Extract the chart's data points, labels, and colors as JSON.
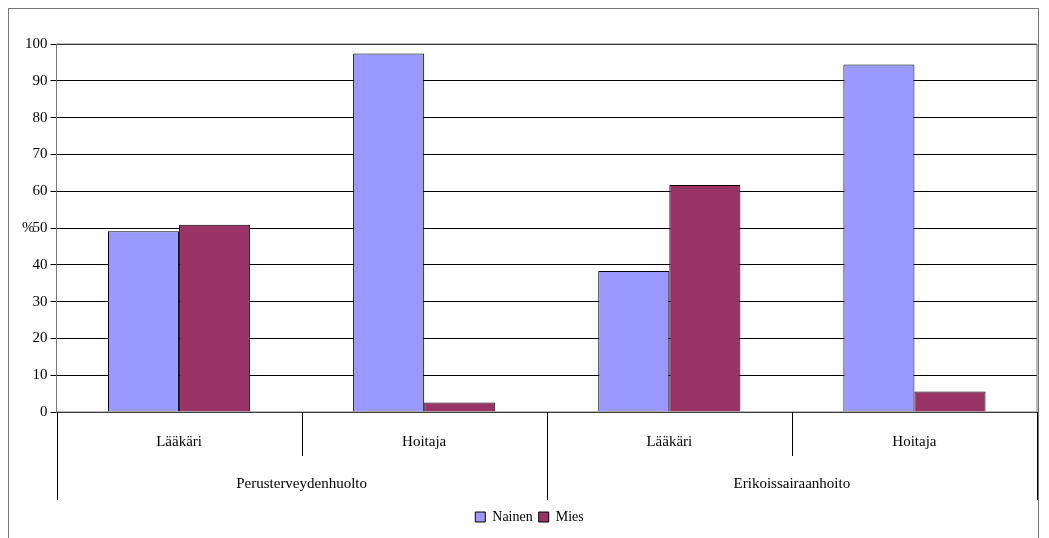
{
  "chart_data": {
    "type": "bar",
    "ylabel": "%",
    "categories": [
      "Lääkäri",
      "Hoitaja",
      "Lääkäri",
      "Hoitaja"
    ],
    "series": [
      {
        "name": "Nainen",
        "color": "#9999ff",
        "values": [
          49.1,
          97.4,
          38.3,
          94.4
        ]
      },
      {
        "name": "Mies",
        "color": "#993366",
        "values": [
          50.9,
          2.6,
          61.7,
          5.6
        ]
      }
    ],
    "annotations": [
      "Perusterveydenhuolto",
      "Erikoissairaanhoito"
    ],
    "ylim": [
      0,
      100
    ],
    "yticks": [
      0,
      10,
      20,
      30,
      40,
      50,
      60,
      70,
      80,
      90,
      100
    ],
    "grid": "y",
    "legend": "bottom"
  }
}
